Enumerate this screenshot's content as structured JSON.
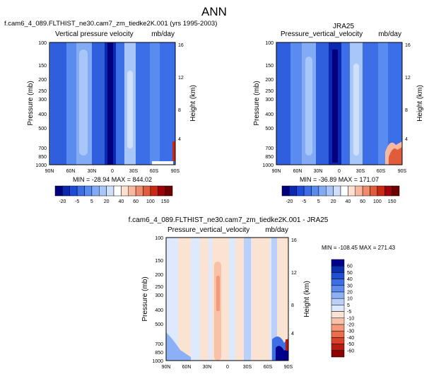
{
  "figure_title": "ANN",
  "colors": {
    "model_obs_scale": [
      "#00007f",
      "#0a28b0",
      "#1e4bd8",
      "#3c6ee8",
      "#5a8cf0",
      "#82aaf5",
      "#a8c6f8",
      "#d0e0fb",
      "#ffffff",
      "#fde0d0",
      "#f8b8a0",
      "#f08c6e",
      "#e05c3c",
      "#c82814",
      "#a0000a",
      "#6e0000"
    ],
    "diff_scale": [
      "#00008c",
      "#0b2fb0",
      "#1e50d2",
      "#3c6ee6",
      "#5f8cf0",
      "#8cb0f6",
      "#b8d0fa",
      "#dde9fc",
      "#fbe3d4",
      "#f8c2a8",
      "#f49a78",
      "#ea6e4c",
      "#d84228",
      "#b81c10",
      "#8c0000"
    ]
  },
  "chart_data": [
    {
      "type": "heatmap",
      "panel": "model",
      "title_left": "f.cam6_4_089.FLTHIST_ne30.cam7_zm_tiedke2K.001 (yrs 1995-2003)",
      "subtitle_left": "Vertical pressure velocity",
      "units": "mb/day",
      "xlabel": "",
      "ylabel": "Pressure (mb)",
      "ylabel_right": "Height (km)",
      "x_ticks": [
        "90N",
        "60N",
        "30N",
        "0",
        "30S",
        "60S",
        "90S"
      ],
      "y_ticks": [
        100,
        150,
        200,
        250,
        300,
        400,
        500,
        700,
        850,
        1000
      ],
      "y_right_ticks": [
        4,
        8,
        12,
        16
      ],
      "ylim": [
        1000,
        100
      ],
      "y_scale": "log",
      "min": -28.94,
      "max": 844.02,
      "stats_text": "MIN = -28.94   MAX = 844.02",
      "colorbar_labels": [
        "-20",
        "-5",
        "5",
        "20",
        "40",
        "60",
        "100",
        "150"
      ]
    },
    {
      "type": "heatmap",
      "panel": "obs",
      "title_center": "JRA25",
      "subtitle_left": "Pressure_vertical_velocity",
      "units": "mb/day",
      "xlabel": "",
      "ylabel": "Pressure (mb)",
      "ylabel_right": "Height (km)",
      "x_ticks": [
        "90N",
        "60N",
        "30N",
        "0",
        "30S",
        "60S",
        "90S"
      ],
      "y_ticks": [
        100,
        150,
        200,
        250,
        300,
        400,
        500,
        700,
        850,
        1000
      ],
      "y_right_ticks": [
        4,
        8,
        12,
        16
      ],
      "ylim": [
        1000,
        100
      ],
      "y_scale": "log",
      "min": -36.89,
      "max": 171.07,
      "stats_text": "MIN = -36.89   MAX = 171.07",
      "colorbar_labels": [
        "-20",
        "-5",
        "5",
        "20",
        "40",
        "60",
        "100",
        "150"
      ]
    },
    {
      "type": "heatmap",
      "panel": "difference",
      "title_center": "f.cam6_4_089.FLTHIST_ne30.cam7_zm_tiedke2K.001 - JRA25",
      "subtitle_left": "Pressure_vertical_velocity",
      "units": "mb/day",
      "xlabel": "",
      "ylabel": "Pressure (mb)",
      "ylabel_right": "Height (km)",
      "x_ticks": [
        "90N",
        "60N",
        "30N",
        "0",
        "30S",
        "60S",
        "90S"
      ],
      "y_ticks": [
        100,
        150,
        200,
        250,
        300,
        400,
        500,
        700,
        850,
        1000
      ],
      "y_right_ticks": [
        4,
        8,
        12,
        16
      ],
      "ylim": [
        1000,
        100
      ],
      "y_scale": "log",
      "min": -108.45,
      "max": 271.43,
      "stats_text": "MIN = -108.45   MAX = 271.43",
      "colorbar_labels": [
        "60",
        "50",
        "40",
        "30",
        "20",
        "10",
        "5",
        "-5",
        "-10",
        "-20",
        "-30",
        "-40",
        "-50",
        "-60"
      ]
    }
  ]
}
